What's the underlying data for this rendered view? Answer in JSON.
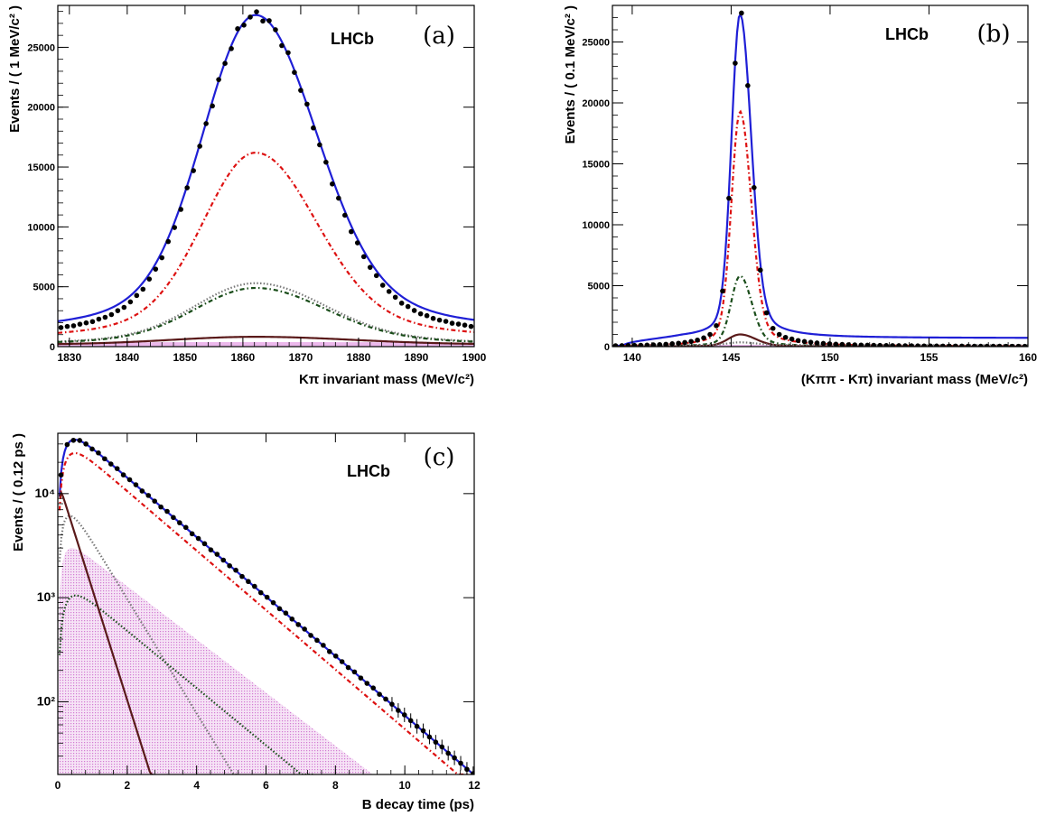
{
  "chart_data": [
    {
      "type": "line",
      "panel_label": "(a)",
      "watermark": "LHCb",
      "xlabel": "Kπ invariant mass (MeV/c²)",
      "ylabel": "Events / ( 1 MeV/c² )",
      "xlim": [
        1828,
        1900
      ],
      "ylim": [
        0,
        28500
      ],
      "log_y": false,
      "x_ticks": [
        1830,
        1840,
        1850,
        1860,
        1870,
        1880,
        1890,
        1900
      ],
      "y_ticks": [
        0,
        5000,
        10000,
        15000,
        20000,
        25000
      ],
      "shape": {
        "kind": "peak",
        "center": 1862.2,
        "total_peak": 27700,
        "sigma_left": 8.8,
        "sigma_right": 10.2,
        "floor": 600
      },
      "series": [
        {
          "style": "data-points",
          "color": "#000000",
          "peak": 27700
        },
        {
          "style": "solid",
          "color": "#1f1fd6",
          "peak": 27700,
          "width": 1.0,
          "floor": 600
        },
        {
          "style": "dash-dot",
          "color": "#dd1111",
          "peak": 16200,
          "width": 1.0,
          "floor": 250
        },
        {
          "style": "dotted",
          "color": "#777777",
          "peak": 5300,
          "width": 1.15,
          "floor": 60
        },
        {
          "style": "dash-dot",
          "color": "#1a4d1a",
          "peak": 4900,
          "width": 1.15,
          "floor": 50
        },
        {
          "style": "solid",
          "color": "#5a1a1a",
          "peak": 820,
          "width": 1.6,
          "floor": 120
        },
        {
          "style": "fill",
          "color": "#e6a0e6",
          "peak": 380,
          "width": 3.5,
          "floor": 250
        }
      ]
    },
    {
      "type": "line",
      "panel_label": "(b)",
      "watermark": "LHCb",
      "xlabel": "(Kππ - Kπ) invariant mass (MeV/c²)",
      "ylabel": "Events / ( 0.1 MeV/c² )",
      "xlim": [
        139,
        160
      ],
      "ylim": [
        0,
        28000
      ],
      "log_y": false,
      "x_ticks": [
        140,
        145,
        150,
        155,
        160
      ],
      "y_ticks": [
        0,
        5000,
        10000,
        15000,
        20000,
        25000
      ],
      "shape": {
        "kind": "narrow-peak",
        "center": 145.45,
        "total_peak": 27300,
        "sigma_left": 0.42,
        "sigma_right": 0.55,
        "floor": 700,
        "threshold": 139.57
      },
      "series": [
        {
          "style": "data-points",
          "color": "#000000",
          "peak": 27300
        },
        {
          "style": "solid",
          "color": "#1f1fd6",
          "peak": 27300,
          "width": 1.0,
          "floor": 700
        },
        {
          "style": "dash-dot",
          "color": "#dd1111",
          "peak": 19300,
          "width": 1.0,
          "floor": 30
        },
        {
          "style": "dash-dot",
          "color": "#1a4d1a",
          "peak": 5800,
          "width": 1.05,
          "floor": 10
        },
        {
          "style": "solid",
          "color": "#5a1a1a",
          "peak": 1000,
          "width": 1.4,
          "floor": 10
        },
        {
          "style": "dotted",
          "color": "#777777",
          "peak": 350,
          "width": 1.4,
          "floor": 120
        },
        {
          "style": "fill",
          "color": "#e6a0e6",
          "peak": 150,
          "width": 4.0,
          "floor": 120
        }
      ]
    },
    {
      "type": "line",
      "panel_label": "(c)",
      "watermark": "LHCb",
      "xlabel": "B decay time (ps)",
      "ylabel": "Events / ( 0.12 ps )",
      "xlim": [
        0,
        12
      ],
      "ylim": [
        20,
        38000
      ],
      "log_y": true,
      "x_ticks": [
        0,
        2,
        4,
        6,
        8,
        10,
        12
      ],
      "y_ticks": [
        100,
        1000,
        10000
      ],
      "y_tick_labels": [
        "10²",
        "10³",
        "10⁴"
      ],
      "series": [
        {
          "style": "data-points",
          "color": "#000000",
          "peak": 33000,
          "peak_t": 0.75,
          "tau": 1.52
        },
        {
          "style": "solid",
          "color": "#1f1fd6",
          "peak": 33000,
          "peak_t": 0.75,
          "tau": 1.52
        },
        {
          "style": "dash-dot",
          "color": "#dd1111",
          "peak": 24500,
          "peak_t": 0.75,
          "tau": 1.52
        },
        {
          "style": "dotted",
          "color": "#777777",
          "peak": 6100,
          "peak_t": 0.7,
          "tau": 0.79
        },
        {
          "style": "dotted",
          "color": "#1a4d1a",
          "peak": 1050,
          "peak_t": 0.8,
          "tau": 1.58
        },
        {
          "style": "solid",
          "color": "#5a1a1a",
          "peak": 10200,
          "peak_t": 0.1,
          "tau": 0.41
        },
        {
          "style": "fill",
          "color": "#e6a0e6",
          "peak": 3000,
          "peak_t": 0.5,
          "tau": 1.7
        }
      ]
    }
  ]
}
